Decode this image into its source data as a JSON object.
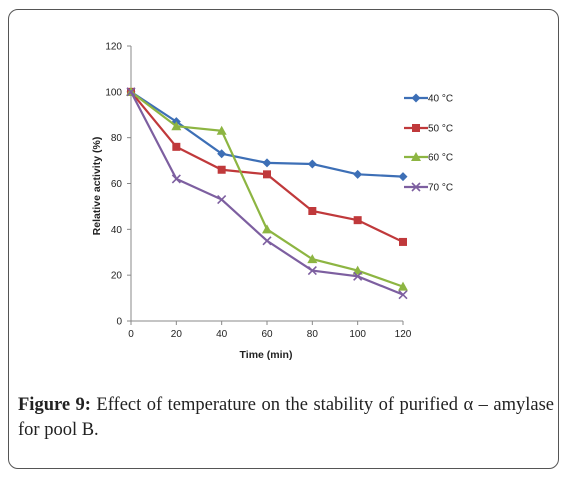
{
  "chart_data": {
    "type": "line",
    "title": "",
    "xlabel": "Time (min)",
    "ylabel": "Relative activity (%)",
    "x": [
      0,
      20,
      40,
      60,
      80,
      100,
      120
    ],
    "xlim": [
      0,
      120
    ],
    "ylim": [
      0,
      120
    ],
    "xticks": [
      0,
      20,
      40,
      60,
      80,
      100,
      120
    ],
    "yticks": [
      0,
      20,
      40,
      60,
      80,
      100,
      120
    ],
    "grid": false,
    "legend_position": "right",
    "series": [
      {
        "name": "40 °C",
        "values": [
          100,
          87,
          73,
          69,
          68.5,
          64,
          63
        ],
        "color": "#3d6fb6",
        "marker": "diamond"
      },
      {
        "name": "50  °C",
        "values": [
          100,
          76,
          66,
          64,
          48,
          44,
          34.5
        ],
        "color": "#c0393b",
        "marker": "square"
      },
      {
        "name": "60  °C",
        "values": [
          100,
          85,
          83,
          40,
          27,
          22,
          15
        ],
        "color": "#8db542",
        "marker": "triangle"
      },
      {
        "name": "70  °C",
        "values": [
          100,
          62,
          53,
          35,
          22,
          19.5,
          11.5
        ],
        "color": "#7d5fa0",
        "marker": "x"
      }
    ]
  },
  "caption": {
    "label": "Figure 9:",
    "text": " Effect of temperature on the stability of purified α – amylase for pool B."
  }
}
